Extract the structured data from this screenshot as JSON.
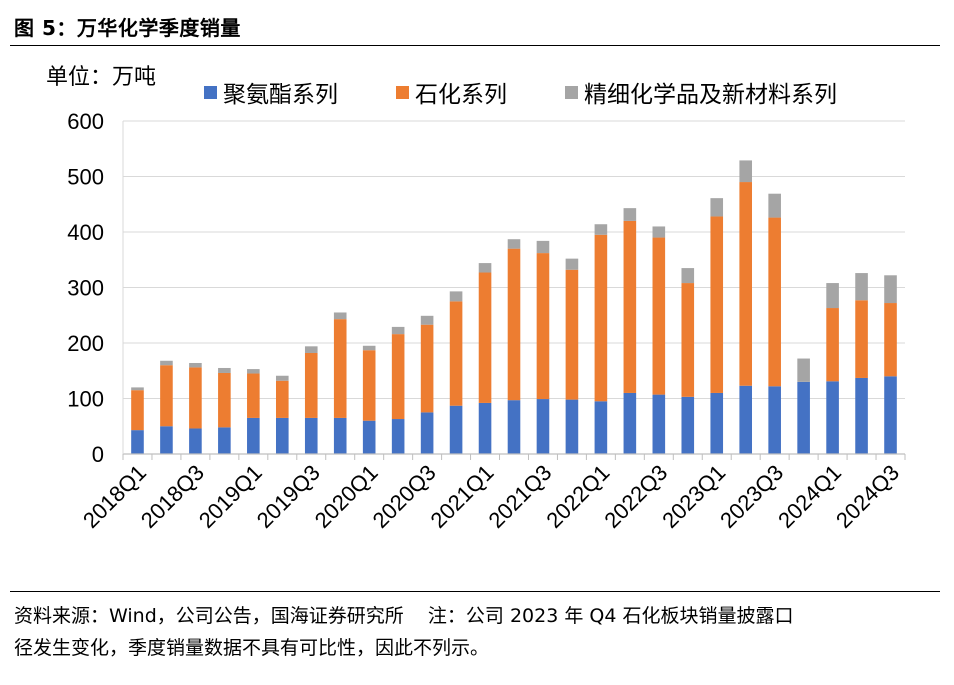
{
  "figure": {
    "title": "图 5：万华化学季度销量",
    "source_line1": "资料来源：Wind，公司公告，国海证券研究所    注：公司 2023 年 Q4 石化板块销量披露口",
    "source_line2": "径发生变化，季度销量数据不具有可比性，因此不列示。"
  },
  "chart_data": {
    "type": "bar",
    "stacked": true,
    "unit_label": "单位：万吨",
    "ylim": [
      0,
      600
    ],
    "yticks": [
      0,
      100,
      200,
      300,
      400,
      500,
      600
    ],
    "grid": true,
    "legend_position": "top",
    "categories": [
      "2018Q1",
      "2018Q2",
      "2018Q3",
      "2018Q4",
      "2019Q1",
      "2019Q2",
      "2019Q3",
      "2019Q4",
      "2020Q1",
      "2020Q2",
      "2020Q3",
      "2020Q4",
      "2021Q1",
      "2021Q2",
      "2021Q3",
      "2021Q4",
      "2022Q1",
      "2022Q2",
      "2022Q3",
      "2022Q4",
      "2023Q1",
      "2023Q2",
      "2023Q3",
      "2023Q4",
      "2024Q1",
      "2024Q2",
      "2024Q3"
    ],
    "x_tick_labels": [
      "2018Q1",
      "2018Q3",
      "2019Q1",
      "2019Q3",
      "2020Q1",
      "2020Q3",
      "2021Q1",
      "2021Q3",
      "2022Q1",
      "2022Q3",
      "2023Q1",
      "2023Q3",
      "2024Q1",
      "2024Q3"
    ],
    "series": [
      {
        "name": "聚氨酯系列",
        "color": "#4472C4",
        "values": [
          43,
          50,
          46,
          48,
          65,
          65,
          65,
          65,
          60,
          63,
          75,
          87,
          92,
          97,
          99,
          98,
          95,
          110,
          107,
          103,
          110,
          123,
          122,
          130,
          131,
          137,
          140
        ]
      },
      {
        "name": "石化系列",
        "color": "#ED7D31",
        "values": [
          72,
          110,
          110,
          98,
          80,
          67,
          117,
          178,
          127,
          153,
          158,
          188,
          235,
          273,
          263,
          234,
          300,
          310,
          283,
          205,
          318,
          367,
          304,
          0,
          132,
          140,
          132
        ]
      },
      {
        "name": "精细化学品及新材料系列",
        "color": "#A5A5A5",
        "values": [
          5,
          8,
          8,
          9,
          8,
          9,
          12,
          12,
          8,
          13,
          16,
          18,
          17,
          17,
          22,
          20,
          19,
          23,
          20,
          27,
          33,
          39,
          43,
          42,
          45,
          49,
          50
        ]
      }
    ]
  }
}
